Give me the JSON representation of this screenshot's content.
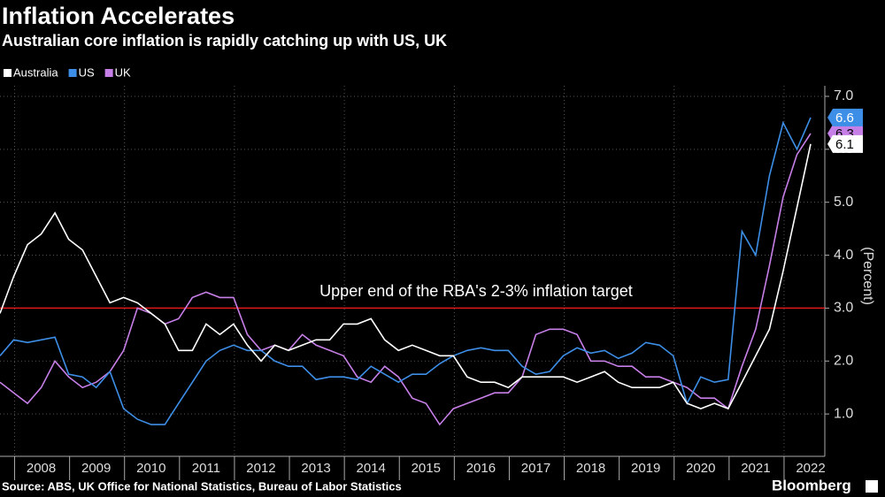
{
  "chart_data": {
    "type": "line",
    "title": "Inflation Accelerates",
    "subtitle": "Australian core inflation is rapidly catching up with US, UK",
    "y_label": "(Percent)",
    "source": "Source: ABS, UK Office for National Statistics, Bureau of Labor Statistics",
    "brand": "Bloomberg",
    "legend": "top-left",
    "grid": true,
    "categories": [
      null,
      null,
      "2008",
      null,
      null,
      null,
      "2009",
      null,
      null,
      null,
      "2010",
      null,
      null,
      null,
      "2011",
      null,
      null,
      null,
      "2012",
      null,
      null,
      null,
      "2013",
      null,
      null,
      null,
      "2014",
      null,
      null,
      null,
      "2015",
      null,
      null,
      null,
      "2016",
      null,
      null,
      null,
      "2017",
      null,
      null,
      null,
      "2018",
      null,
      null,
      null,
      "2019",
      null,
      null,
      null,
      "2020",
      null,
      null,
      null,
      "2021",
      null,
      null,
      null,
      "2022",
      null
    ],
    "ylim": [
      0.2,
      7.2
    ],
    "yticks": [
      {
        "value": 1,
        "label": "1.0"
      },
      {
        "value": 2,
        "label": "2.0"
      },
      {
        "value": 3,
        "label": "3.0"
      },
      {
        "value": 4,
        "label": "4.0"
      },
      {
        "value": 5,
        "label": "5.0"
      },
      {
        "value": 6,
        "label": "6.0"
      },
      {
        "value": 7,
        "label": "7.0"
      }
    ],
    "reference_line": {
      "value": 3,
      "label": "Upper end of the RBA's 2-3% inflation target",
      "color": "#e0161b"
    },
    "series": [
      {
        "name": "Australia",
        "color": "#ffffff",
        "text_color": "#000000",
        "values": [
          2.9,
          3.6,
          4.2,
          4.4,
          4.8,
          4.3,
          4.1,
          3.6,
          3.1,
          3.2,
          3.1,
          2.9,
          2.7,
          2.2,
          2.2,
          2.7,
          2.5,
          2.7,
          2.3,
          2.0,
          2.3,
          2.2,
          2.3,
          2.4,
          2.4,
          2.7,
          2.7,
          2.8,
          2.4,
          2.2,
          2.3,
          2.2,
          2.1,
          2.1,
          1.7,
          1.6,
          1.6,
          1.5,
          1.7,
          1.7,
          1.7,
          1.7,
          1.6,
          1.7,
          1.8,
          1.6,
          1.5,
          1.5,
          1.5,
          1.6,
          1.2,
          1.1,
          1.2,
          1.1,
          1.6,
          2.1,
          2.6,
          3.7,
          4.9,
          6.1
        ]
      },
      {
        "name": "US",
        "color": "#3d8ee6",
        "text_color": "#ffffff",
        "values": [
          2.1,
          2.4,
          2.35,
          2.4,
          2.45,
          1.75,
          1.7,
          1.5,
          1.8,
          1.1,
          0.9,
          0.8,
          0.8,
          1.2,
          1.6,
          2.0,
          2.2,
          2.3,
          2.2,
          2.2,
          2.0,
          1.9,
          1.9,
          1.65,
          1.7,
          1.7,
          1.65,
          1.9,
          1.75,
          1.6,
          1.75,
          1.75,
          1.95,
          2.1,
          2.2,
          2.25,
          2.2,
          2.2,
          1.9,
          1.75,
          1.8,
          2.1,
          2.25,
          2.15,
          2.2,
          2.05,
          2.15,
          2.35,
          2.3,
          2.1,
          1.2,
          1.7,
          1.6,
          1.65,
          4.45,
          4.0,
          5.5,
          6.5,
          6.0,
          6.6
        ]
      },
      {
        "name": "UK",
        "color": "#c77fe8",
        "text_color": "#000000",
        "values": [
          1.6,
          1.4,
          1.2,
          1.5,
          2.0,
          1.7,
          1.5,
          1.6,
          1.8,
          2.2,
          3.0,
          2.9,
          2.7,
          2.8,
          3.2,
          3.3,
          3.2,
          3.2,
          2.5,
          2.2,
          2.3,
          2.2,
          2.5,
          2.3,
          2.2,
          2.1,
          1.7,
          1.6,
          1.9,
          1.7,
          1.3,
          1.2,
          0.8,
          1.1,
          1.2,
          1.3,
          1.4,
          1.4,
          1.7,
          2.5,
          2.6,
          2.6,
          2.5,
          2.0,
          2.0,
          1.9,
          1.9,
          1.7,
          1.7,
          1.6,
          1.5,
          1.3,
          1.3,
          1.1,
          1.9,
          2.6,
          3.8,
          5.1,
          5.9,
          6.3
        ]
      }
    ]
  }
}
